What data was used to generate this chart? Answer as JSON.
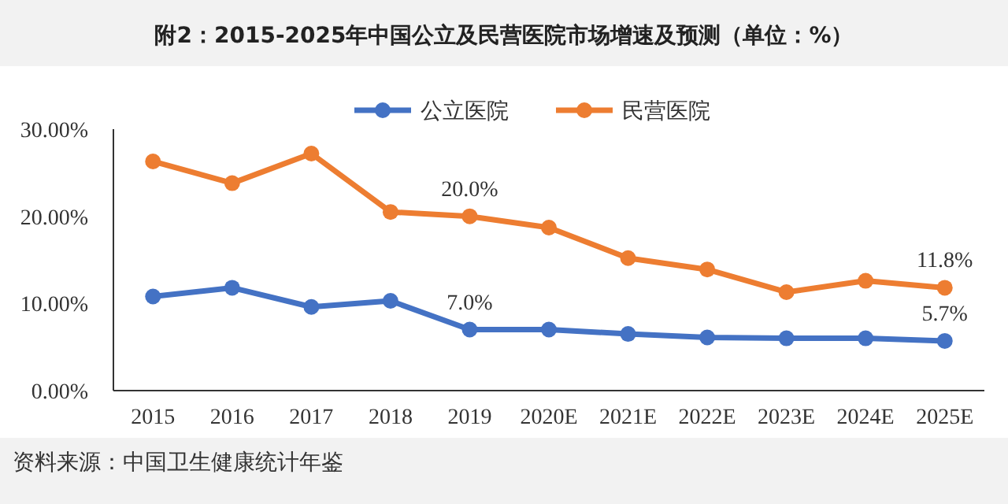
{
  "chart_data": {
    "type": "line",
    "title": "附2：2015-2025年中国公立及民营医院市场增速及预测（单位：%）",
    "categories": [
      "2015",
      "2016",
      "2017",
      "2018",
      "2019",
      "2020E",
      "2021E",
      "2022E",
      "2023E",
      "2024E",
      "2025E"
    ],
    "series": [
      {
        "name": "公立医院",
        "color": "#4472c4",
        "values": [
          10.8,
          11.8,
          9.6,
          10.3,
          7.0,
          7.0,
          6.5,
          6.1,
          6.0,
          6.0,
          5.7
        ],
        "value_labels": [
          null,
          null,
          null,
          null,
          "7.0%",
          null,
          null,
          null,
          null,
          null,
          "5.7%"
        ]
      },
      {
        "name": "民营医院",
        "color": "#ed7d31",
        "values": [
          26.3,
          23.8,
          27.2,
          20.5,
          20.0,
          18.7,
          15.2,
          13.9,
          11.3,
          12.6,
          11.8
        ],
        "value_labels": [
          null,
          null,
          null,
          null,
          "20.0%",
          null,
          null,
          null,
          null,
          null,
          "11.8%"
        ]
      }
    ],
    "ylim": [
      0,
      30
    ],
    "yticks": [
      {
        "value": 0,
        "label": "0.00%"
      },
      {
        "value": 10,
        "label": "10.00%"
      },
      {
        "value": 20,
        "label": "20.00%"
      },
      {
        "value": 30,
        "label": "30.00%"
      }
    ],
    "grid": false,
    "legend": "top",
    "marker": "circle",
    "line_style": "solid",
    "annotations": [
      "资料来源：中国卫生健康统计年鉴"
    ]
  }
}
